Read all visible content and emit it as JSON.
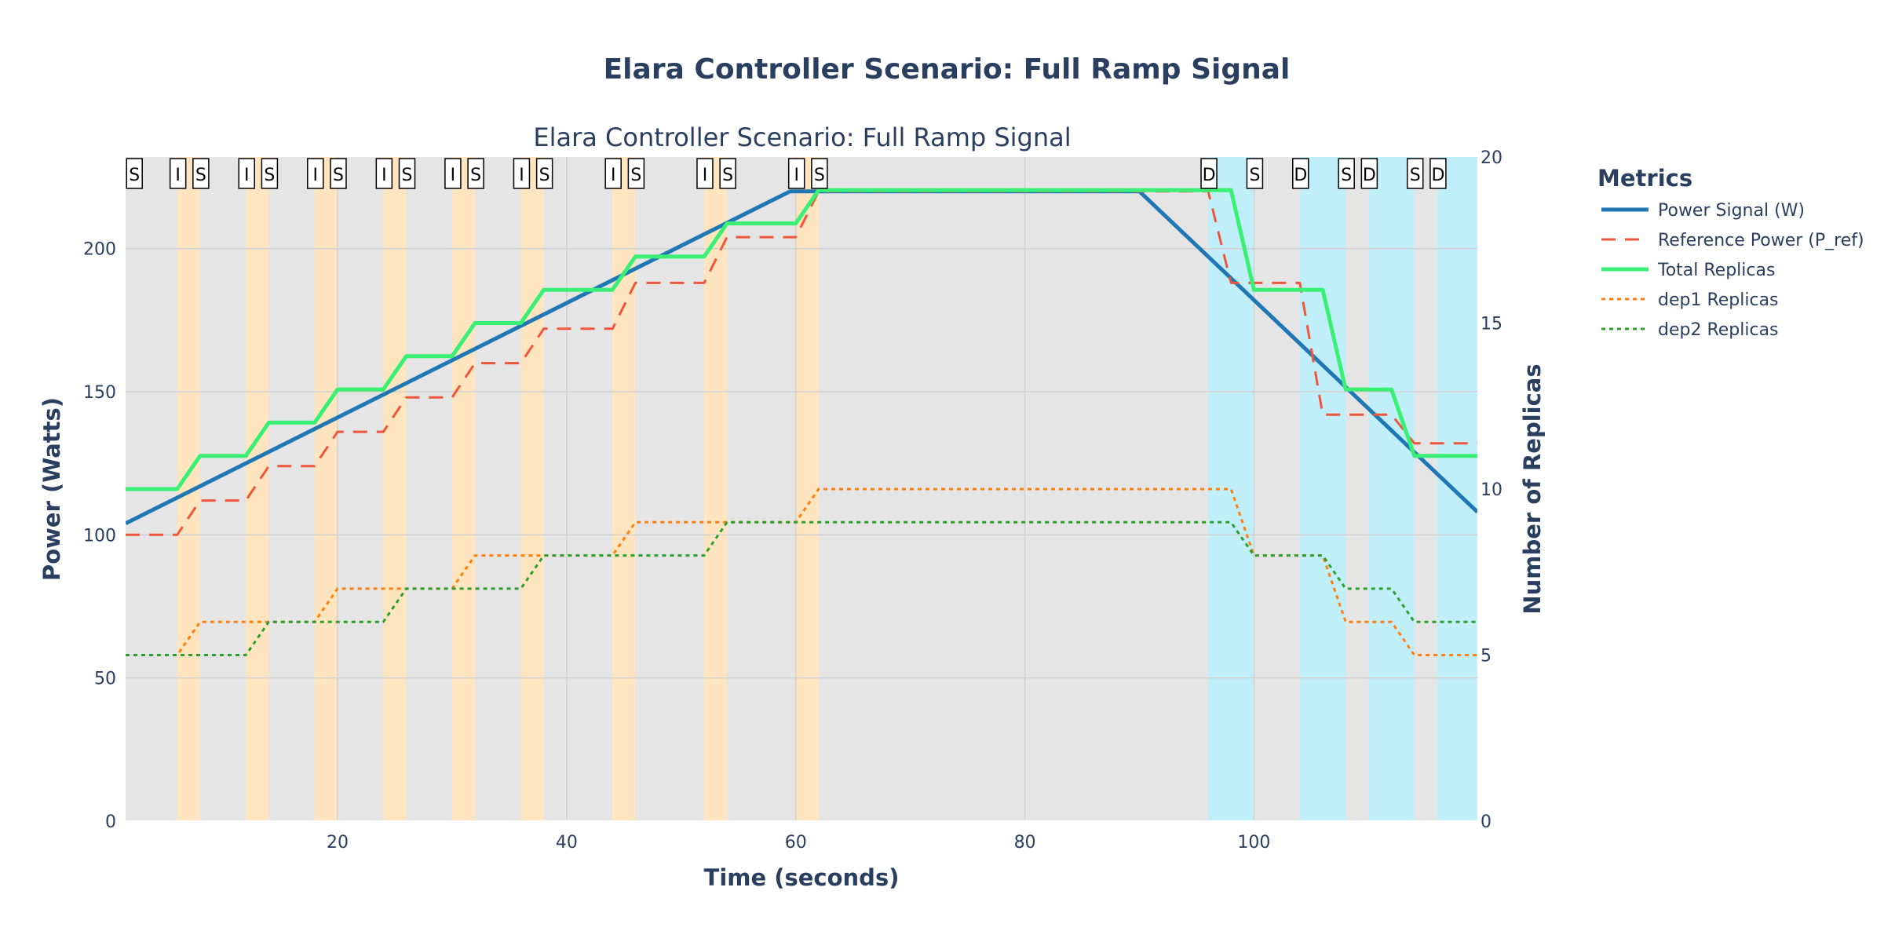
{
  "chart_data": {
    "type": "line",
    "title": "Elara Controller Scenario: Full Ramp Signal",
    "subtitle": "Elara Controller Scenario: Full Ramp Signal",
    "xlabel": "Time (seconds)",
    "ylabel_left": "Power (Watts)",
    "ylabel_right": "Number of Replicas",
    "xlim": [
      1.5,
      119.5
    ],
    "ylim_left": [
      0,
      232
    ],
    "ylim_right": [
      0,
      20
    ],
    "x_ticks": [
      20,
      40,
      60,
      80,
      100
    ],
    "y_left_ticks": [
      0,
      50,
      100,
      150,
      200
    ],
    "y_right_ticks": [
      0,
      5,
      10,
      15,
      20
    ],
    "grid": true,
    "legend_title": "Metrics",
    "legend_position": "right",
    "background_color": "#e5e5e5",
    "series": [
      {
        "name": "Power Signal (W)",
        "axis": "left",
        "color": "#1f77b4",
        "dash": "solid",
        "width": 5,
        "points": [
          [
            1.5,
            104
          ],
          [
            59.5,
            220
          ],
          [
            90,
            220
          ],
          [
            119.5,
            108
          ]
        ]
      },
      {
        "name": "Reference Power (P_ref)",
        "axis": "left",
        "color": "#ef553b",
        "dash": "dash",
        "width": 3,
        "points": [
          [
            1.5,
            100
          ],
          [
            6,
            100
          ],
          [
            8,
            112
          ],
          [
            12,
            112
          ],
          [
            14,
            124
          ],
          [
            18,
            124
          ],
          [
            20,
            136
          ],
          [
            24,
            136
          ],
          [
            26,
            148
          ],
          [
            30,
            148
          ],
          [
            32,
            160
          ],
          [
            36,
            160
          ],
          [
            38,
            172
          ],
          [
            44,
            172
          ],
          [
            46,
            188
          ],
          [
            52,
            188
          ],
          [
            54,
            204
          ],
          [
            60,
            204
          ],
          [
            62,
            220
          ],
          [
            96,
            220
          ],
          [
            98,
            188
          ],
          [
            104,
            188
          ],
          [
            106,
            142
          ],
          [
            112,
            142
          ],
          [
            114,
            132
          ],
          [
            119.5,
            132
          ]
        ]
      },
      {
        "name": "Total Replicas",
        "axis": "right",
        "color": "#39f074",
        "dash": "solid",
        "width": 5,
        "points": [
          [
            1.5,
            10
          ],
          [
            6,
            10
          ],
          [
            8,
            11
          ],
          [
            12,
            11
          ],
          [
            14,
            12
          ],
          [
            18,
            12
          ],
          [
            20,
            13
          ],
          [
            24,
            13
          ],
          [
            26,
            14
          ],
          [
            30,
            14
          ],
          [
            32,
            15
          ],
          [
            36,
            15
          ],
          [
            38,
            16
          ],
          [
            44,
            16
          ],
          [
            46,
            17
          ],
          [
            52,
            17
          ],
          [
            54,
            18
          ],
          [
            60,
            18
          ],
          [
            62,
            19
          ],
          [
            98,
            19
          ],
          [
            100,
            16
          ],
          [
            106,
            16
          ],
          [
            108,
            13
          ],
          [
            112,
            13
          ],
          [
            114,
            11
          ],
          [
            119.5,
            11
          ]
        ]
      },
      {
        "name": "dep1 Replicas",
        "axis": "right",
        "color": "#ff7f0e",
        "dash": "dot",
        "width": 3,
        "points": [
          [
            1.5,
            5
          ],
          [
            6,
            5
          ],
          [
            8,
            6
          ],
          [
            14,
            6
          ],
          [
            18,
            6
          ],
          [
            20,
            7
          ],
          [
            30,
            7
          ],
          [
            32,
            8
          ],
          [
            44,
            8
          ],
          [
            46,
            9
          ],
          [
            60,
            9
          ],
          [
            62,
            10
          ],
          [
            98,
            10
          ],
          [
            100,
            8
          ],
          [
            106,
            8
          ],
          [
            108,
            6
          ],
          [
            112,
            6
          ],
          [
            114,
            5
          ],
          [
            119.5,
            5
          ]
        ]
      },
      {
        "name": "dep2 Replicas",
        "axis": "right",
        "color": "#2ca02c",
        "dash": "dot",
        "width": 3,
        "points": [
          [
            1.5,
            5
          ],
          [
            12,
            5
          ],
          [
            14,
            6
          ],
          [
            24,
            6
          ],
          [
            26,
            7
          ],
          [
            36,
            7
          ],
          [
            38,
            8
          ],
          [
            52,
            8
          ],
          [
            54,
            9
          ],
          [
            98,
            9
          ],
          [
            100,
            8
          ],
          [
            106,
            8
          ],
          [
            108,
            7
          ],
          [
            112,
            7
          ],
          [
            114,
            6
          ],
          [
            119.5,
            6
          ]
        ]
      }
    ],
    "shaded_regions": [
      {
        "kind": "scale-up",
        "color": "#ffe5bf",
        "x0": 6,
        "x1": 8
      },
      {
        "kind": "scale-up",
        "color": "#ffe5bf",
        "x0": 12,
        "x1": 14
      },
      {
        "kind": "scale-up",
        "color": "#ffe5bf",
        "x0": 18,
        "x1": 20
      },
      {
        "kind": "scale-up",
        "color": "#ffe5bf",
        "x0": 24,
        "x1": 26
      },
      {
        "kind": "scale-up",
        "color": "#ffe5bf",
        "x0": 30,
        "x1": 32
      },
      {
        "kind": "scale-up",
        "color": "#ffe5bf",
        "x0": 36,
        "x1": 38
      },
      {
        "kind": "scale-up",
        "color": "#ffe5bf",
        "x0": 44,
        "x1": 46
      },
      {
        "kind": "scale-up",
        "color": "#ffe5bf",
        "x0": 52,
        "x1": 54
      },
      {
        "kind": "scale-up",
        "color": "#ffe5bf",
        "x0": 60,
        "x1": 62
      },
      {
        "kind": "scale-down",
        "color": "#c0effa",
        "x0": 96,
        "x1": 100
      },
      {
        "kind": "scale-down",
        "color": "#c0effa",
        "x0": 104,
        "x1": 108
      },
      {
        "kind": "scale-down",
        "color": "#c0effa",
        "x0": 110,
        "x1": 114
      },
      {
        "kind": "scale-down",
        "color": "#c0effa",
        "x0": 116,
        "x1": 119.5
      }
    ],
    "annotations": [
      {
        "label": "S",
        "x": 2.2
      },
      {
        "label": "I",
        "x": 6
      },
      {
        "label": "S",
        "x": 8
      },
      {
        "label": "I",
        "x": 12
      },
      {
        "label": "S",
        "x": 14
      },
      {
        "label": "I",
        "x": 18
      },
      {
        "label": "S",
        "x": 20
      },
      {
        "label": "I",
        "x": 24
      },
      {
        "label": "S",
        "x": 26
      },
      {
        "label": "I",
        "x": 30
      },
      {
        "label": "S",
        "x": 32
      },
      {
        "label": "I",
        "x": 36
      },
      {
        "label": "S",
        "x": 38
      },
      {
        "label": "I",
        "x": 44
      },
      {
        "label": "S",
        "x": 46
      },
      {
        "label": "I",
        "x": 52
      },
      {
        "label": "S",
        "x": 54
      },
      {
        "label": "I",
        "x": 60
      },
      {
        "label": "S",
        "x": 62
      },
      {
        "label": "D",
        "x": 96
      },
      {
        "label": "S",
        "x": 100
      },
      {
        "label": "D",
        "x": 104
      },
      {
        "label": "S",
        "x": 108
      },
      {
        "label": "D",
        "x": 110
      },
      {
        "label": "S",
        "x": 114
      },
      {
        "label": "D",
        "x": 116
      }
    ]
  }
}
